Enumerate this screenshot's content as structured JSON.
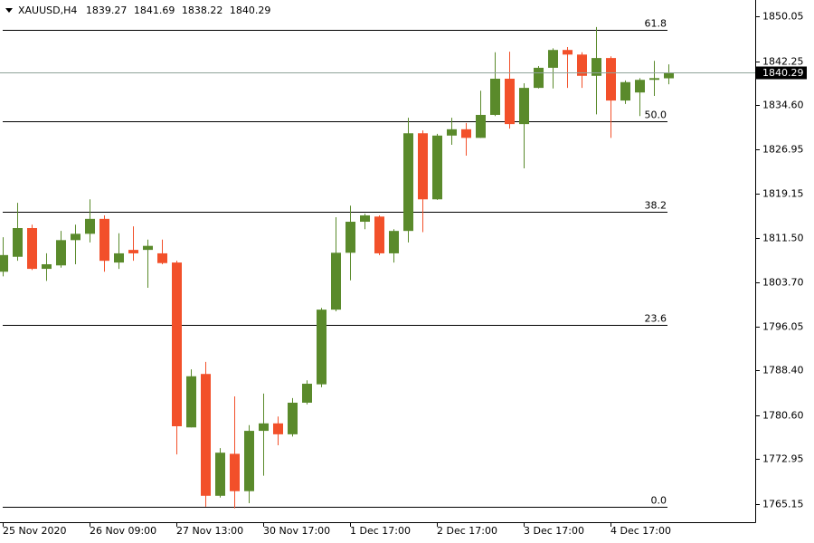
{
  "chart_data": {
    "type": "candlestick",
    "symbol": "XAUUSD,H4",
    "categories": [
      "25 Nov 2020",
      null,
      null,
      null,
      null,
      null,
      "26 Nov 09:00",
      null,
      null,
      null,
      null,
      null,
      "27 Nov 13:00",
      null,
      null,
      null,
      null,
      null,
      "30 Nov 17:00",
      null,
      null,
      null,
      null,
      null,
      "1 Dec 17:00",
      null,
      null,
      null,
      null,
      null,
      "2 Dec 17:00",
      null,
      null,
      null,
      null,
      null,
      "3 Dec 17:00",
      null,
      null,
      null,
      null,
      null,
      "4 Dec 17:00",
      null,
      null,
      null,
      null
    ],
    "open": [
      1805.6,
      1808.2,
      1813.2,
      1806.1,
      1806.7,
      1811.1,
      1812.2,
      1814.8,
      1807.2,
      1809.4,
      1809.4,
      1808.8,
      1807.2,
      1778.5,
      1787.8,
      1766.6,
      1773.9,
      1767.4,
      1777.9,
      1779.2,
      1777.3,
      1782.8,
      1786.0,
      1799.0,
      1808.9,
      1814.3,
      1815.2,
      1808.8,
      1812.7,
      1829.7,
      1818.2,
      1829.3,
      1830.4,
      1828.9,
      1832.9,
      1839.2,
      1831.3,
      1837.6,
      1841.1,
      1844.2,
      1843.4,
      1839.7,
      1842.8,
      1835.4,
      1836.8,
      1839.0,
      1839.27
    ],
    "high": [
      1811.6,
      1817.6,
      1813.8,
      1808.8,
      1812.7,
      1813.8,
      1818.2,
      1815.4,
      1812.3,
      1813.5,
      1811.2,
      1811.2,
      1807.5,
      1788.6,
      1789.9,
      1774.9,
      1783.9,
      1778.9,
      1784.4,
      1780.4,
      1783.6,
      1786.7,
      1799.3,
      1815.1,
      1817.1,
      1815.7,
      1815.4,
      1813.0,
      1832.4,
      1830.2,
      1829.6,
      1832.4,
      1831.5,
      1837.1,
      1843.8,
      1843.9,
      1838.4,
      1841.4,
      1844.5,
      1844.7,
      1843.8,
      1848.2,
      1843.1,
      1838.9,
      1839.3,
      1842.3,
      1841.69
    ],
    "low": [
      1804.8,
      1807.5,
      1805.9,
      1804.0,
      1806.3,
      1806.9,
      1810.7,
      1805.6,
      1806.1,
      1807.5,
      1802.8,
      1806.9,
      1773.8,
      1778.5,
      1764.7,
      1766.3,
      1764.4,
      1765.3,
      1770.1,
      1775.4,
      1776.9,
      1782.5,
      1785.5,
      1798.7,
      1804.1,
      1813.0,
      1808.5,
      1807.2,
      1810.7,
      1812.5,
      1818.1,
      1827.7,
      1825.8,
      1828.9,
      1832.7,
      1830.5,
      1823.6,
      1837.5,
      1837.5,
      1837.6,
      1837.6,
      1833.0,
      1828.9,
      1834.8,
      1832.7,
      1836.2,
      1838.22
    ],
    "close": [
      1808.5,
      1813.2,
      1806.1,
      1806.9,
      1811.1,
      1812.2,
      1814.8,
      1807.5,
      1808.8,
      1808.8,
      1810.1,
      1807.1,
      1778.7,
      1787.4,
      1766.6,
      1774.1,
      1767.4,
      1777.9,
      1779.2,
      1777.3,
      1782.8,
      1786.1,
      1799.0,
      1808.9,
      1814.3,
      1815.4,
      1808.8,
      1812.7,
      1829.7,
      1818.2,
      1829.3,
      1830.4,
      1828.9,
      1832.9,
      1839.2,
      1831.3,
      1837.6,
      1841.1,
      1844.2,
      1843.4,
      1839.7,
      1842.8,
      1835.4,
      1838.6,
      1839.0,
      1839.3,
      1840.29
    ],
    "up_color": "#5a8a2b",
    "down_color": "#f2502a",
    "ylim": [
      1762.0,
      1852.9
    ],
    "yticks": [
      1765.15,
      1772.95,
      {
        "value": 1780.6,
        "label": "1780.60"
      },
      {
        "value": 1788.4,
        "label": "1788.40"
      },
      1796.05,
      {
        "value": 1803.7,
        "label": "1803.70"
      },
      {
        "value": 1811.5,
        "label": "1811.50"
      },
      1819.15,
      1826.95,
      {
        "value": 1834.6,
        "label": "1834.60"
      },
      1842.25,
      1850.05
    ],
    "fib_levels": [
      {
        "level": 61.8,
        "price": 1847.7
      },
      {
        "level": 50,
        "label": "50.0",
        "price": 1831.8
      },
      {
        "level": 38.2,
        "price": 1816.0
      },
      {
        "level": 23.6,
        "price": 1796.3
      },
      {
        "level": 0,
        "label": "0.0",
        "price": 1764.7
      }
    ]
  }
}
